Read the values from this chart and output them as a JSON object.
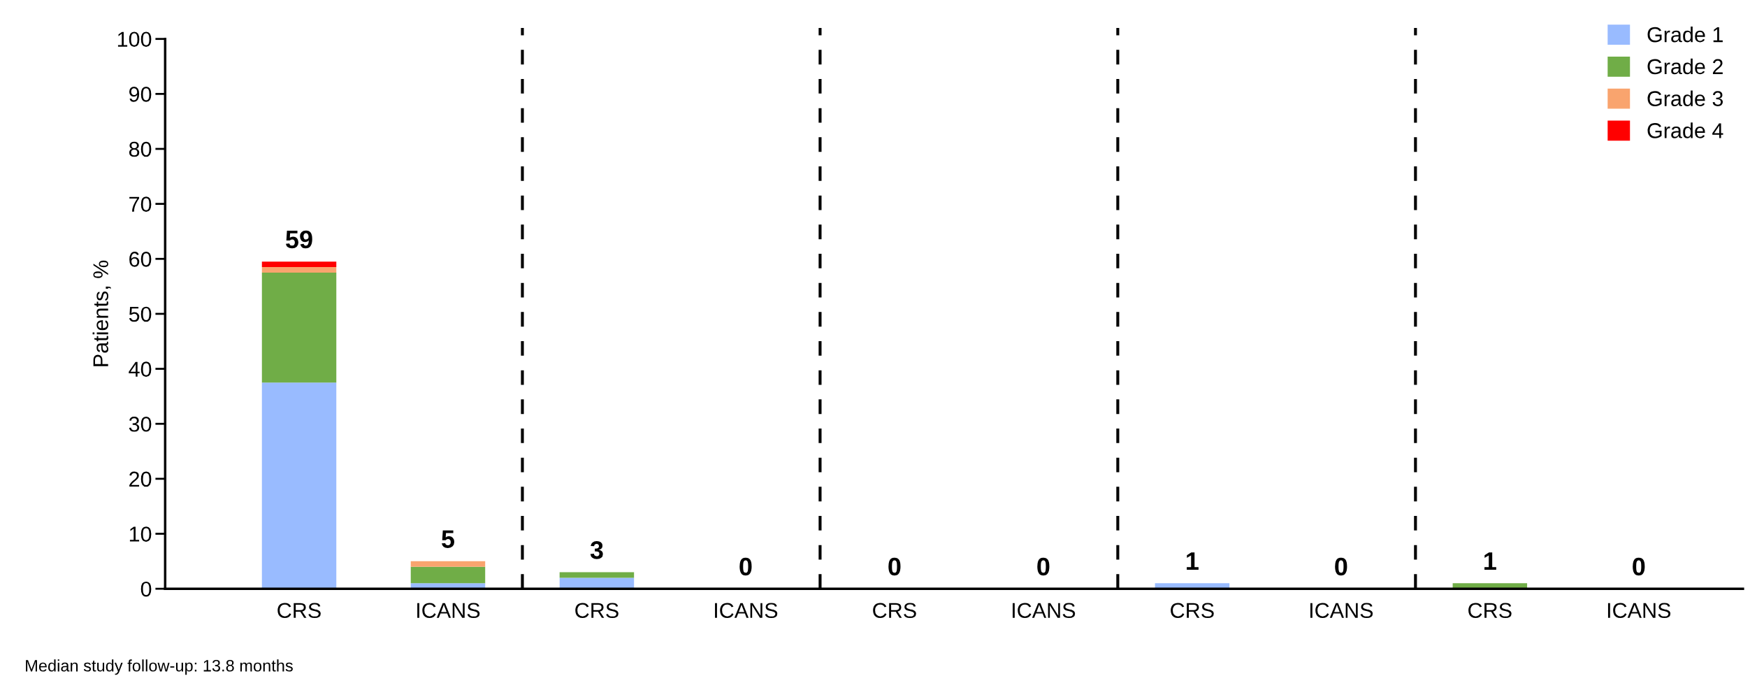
{
  "chart_data": {
    "type": "bar",
    "stacked": true,
    "ylabel": "Patients, %",
    "categories": [
      "CRS",
      "ICANS",
      "CRS",
      "ICANS",
      "CRS",
      "ICANS",
      "CRS",
      "ICANS",
      "CRS",
      "ICANS"
    ],
    "series": [
      {
        "name": "Grade 1",
        "color": "#99bbff",
        "values": [
          37.5,
          1,
          2,
          0,
          0,
          0,
          1,
          0,
          0,
          0
        ]
      },
      {
        "name": "Grade 2",
        "color": "#70ad47",
        "values": [
          20,
          3,
          1,
          0,
          0,
          0,
          0,
          0,
          1,
          0
        ]
      },
      {
        "name": "Grade 3",
        "color": "#f9a46e",
        "values": [
          1,
          1,
          0,
          0,
          0,
          0,
          0,
          0,
          0,
          0
        ]
      },
      {
        "name": "Grade 4",
        "color": "#ff0000",
        "values": [
          1,
          0,
          0,
          0,
          0,
          0,
          0,
          0,
          0,
          0
        ]
      }
    ],
    "totals": [
      "59",
      "5",
      "3",
      "0",
      "0",
      "0",
      "1",
      "0",
      "1",
      "0"
    ],
    "ylim": [
      0,
      100
    ],
    "yticks": [
      0,
      10,
      20,
      30,
      40,
      50,
      60,
      70,
      80,
      90,
      100
    ],
    "legend": "top right",
    "grid": false,
    "annotations": [
      "Median study follow-up: 13.8 months"
    ]
  }
}
